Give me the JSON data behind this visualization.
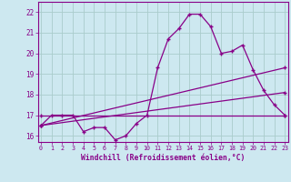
{
  "xlabel": "Windchill (Refroidissement éolien,°C)",
  "background_color": "#cde8f0",
  "grid_color": "#aacccc",
  "line_color": "#880088",
  "x_ticks": [
    0,
    1,
    2,
    3,
    4,
    5,
    6,
    7,
    8,
    9,
    10,
    11,
    12,
    13,
    14,
    15,
    16,
    17,
    18,
    19,
    20,
    21,
    22,
    23
  ],
  "y_ticks": [
    16,
    17,
    18,
    19,
    20,
    21,
    22
  ],
  "ylim": [
    15.7,
    22.5
  ],
  "xlim": [
    -0.3,
    23.3
  ],
  "series1_x": [
    0,
    1,
    2,
    3,
    4,
    5,
    6,
    7,
    8,
    9,
    10,
    11,
    12,
    13,
    14,
    15,
    16,
    17,
    18,
    19,
    20,
    21,
    22,
    23
  ],
  "series1_y": [
    16.5,
    17.0,
    17.0,
    17.0,
    16.2,
    16.4,
    16.4,
    15.8,
    16.0,
    16.6,
    17.0,
    19.3,
    20.7,
    21.2,
    21.9,
    21.9,
    21.3,
    20.0,
    20.1,
    20.4,
    19.2,
    18.2,
    17.5,
    17.0
  ],
  "series2_x": [
    0,
    23
  ],
  "series2_y": [
    17.0,
    17.0
  ],
  "series3_x": [
    0,
    23
  ],
  "series3_y": [
    16.5,
    19.3
  ],
  "series4_x": [
    0,
    23
  ],
  "series4_y": [
    16.5,
    18.1
  ]
}
